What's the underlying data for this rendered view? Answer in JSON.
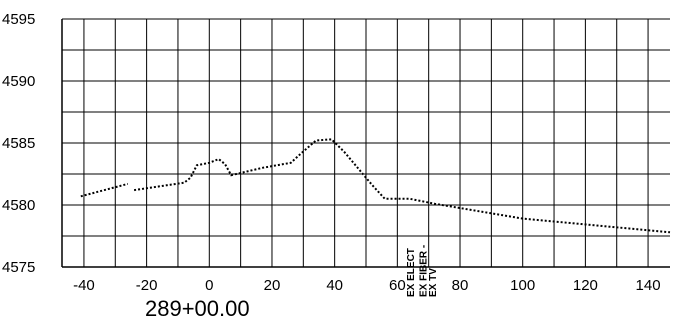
{
  "chart_data": {
    "type": "line",
    "title": "",
    "xlabel": "289+00.00",
    "ylabel": "",
    "xlim": [
      -47,
      147
    ],
    "ylim": [
      4575,
      4595
    ],
    "xticks": [
      -40,
      -20,
      0,
      20,
      40,
      60,
      80,
      100,
      120,
      140
    ],
    "xtick_labels": [
      "-40",
      "-20",
      "0",
      "20",
      "40",
      "60",
      "80",
      "100",
      "120",
      "140"
    ],
    "yticks": [
      4575,
      4580,
      4585,
      4590,
      4595
    ],
    "ytick_labels": [
      "4575",
      "4580",
      "4585",
      "4590",
      "4595"
    ],
    "grid": true,
    "grid_x_step": 10,
    "grid_y_step": 2.5,
    "series": [
      {
        "style": "dotted",
        "segments": [
          [
            [
              -41,
              4580.7
            ],
            [
              -26,
              4581.7
            ]
          ],
          [
            [
              -24,
              4581.2
            ],
            [
              -8,
              4581.8
            ],
            [
              -6,
              4582.2
            ],
            [
              -4,
              4583.2
            ],
            [
              0,
              4583.4
            ],
            [
              3,
              4583.7
            ],
            [
              5,
              4583.3
            ],
            [
              7,
              4582.4
            ],
            [
              17,
              4583.0
            ],
            [
              26,
              4583.4
            ],
            [
              29,
              4584.1
            ],
            [
              34,
              4585.2
            ],
            [
              39,
              4585.3
            ],
            [
              43,
              4584.3
            ],
            [
              52,
              4581.6
            ],
            [
              56,
              4580.5
            ],
            [
              64,
              4580.5
            ],
            [
              72,
              4580.1
            ],
            [
              100,
              4578.9
            ],
            [
              147,
              4577.8
            ]
          ]
        ]
      }
    ],
    "utilities": [
      {
        "label": "EX ELECT",
        "x": 64
      },
      {
        "label": "EX FIBER -",
        "x": 68
      },
      {
        "label": "EX TV",
        "x": 71
      }
    ]
  }
}
